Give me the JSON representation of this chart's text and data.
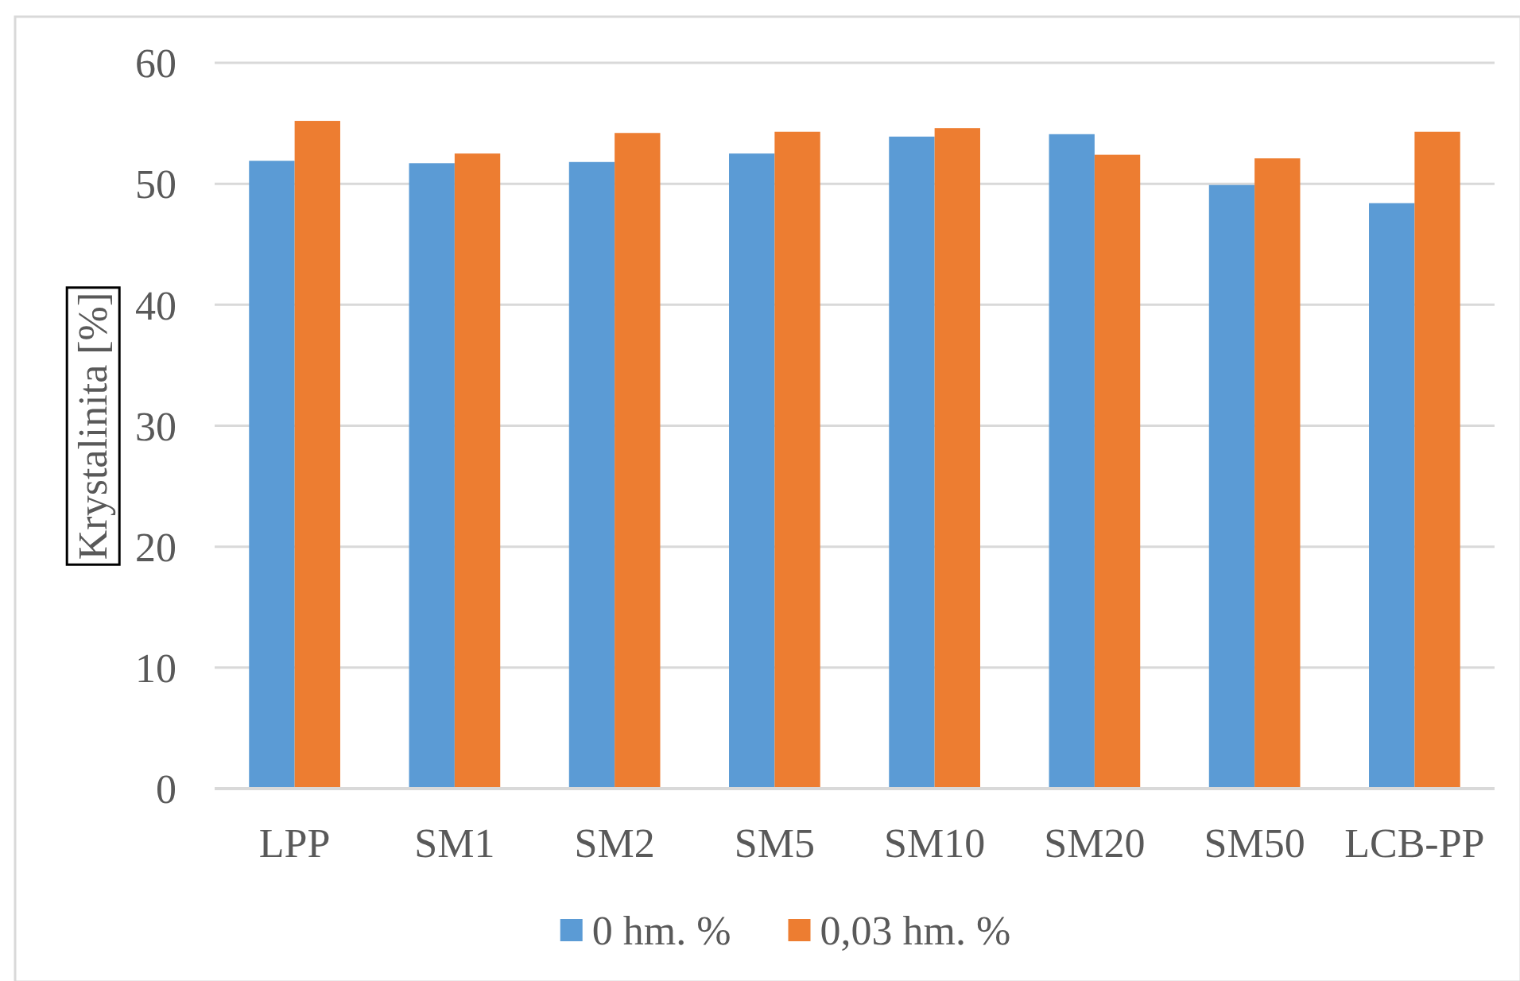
{
  "chart_data": {
    "type": "bar",
    "ylabel": "Krystalinita [%]",
    "categories": [
      "LPP",
      "SM1",
      "SM2",
      "SM5",
      "SM10",
      "SM20",
      "SM50",
      "LCB-PP"
    ],
    "series": [
      {
        "name": "0 hm. %",
        "color": "#5b9bd5",
        "values": [
          51.9,
          51.7,
          51.8,
          52.5,
          53.9,
          54.1,
          49.9,
          48.4
        ]
      },
      {
        "name": "0,03 hm. %",
        "color": "#ed7d31",
        "values": [
          55.2,
          52.5,
          54.2,
          54.3,
          54.6,
          52.4,
          52.1,
          54.3
        ]
      }
    ],
    "ylim": [
      0,
      60
    ],
    "yticks": [
      0,
      10,
      20,
      30,
      40,
      50,
      60
    ],
    "grid": "y",
    "legend": "bottom"
  }
}
